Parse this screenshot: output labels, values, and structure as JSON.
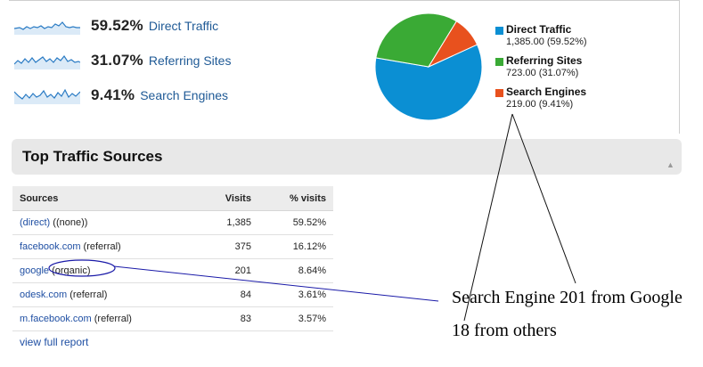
{
  "summary": [
    {
      "percent": "59.52%",
      "label": "Direct Traffic"
    },
    {
      "percent": "31.07%",
      "label": "Referring Sites"
    },
    {
      "percent": "9.41%",
      "label": "Search Engines"
    }
  ],
  "legend": [
    {
      "name": "Direct Traffic",
      "value": "1,385.00 (59.52%)",
      "color": "#0b8fd3"
    },
    {
      "name": "Referring Sites",
      "value": "723.00 (31.07%)",
      "color": "#3aaa35"
    },
    {
      "name": "Search Engines",
      "value": "219.00 (9.41%)",
      "color": "#e8511e"
    }
  ],
  "section": {
    "title": "Top Traffic Sources"
  },
  "table": {
    "headers": {
      "sources": "Sources",
      "visits": "Visits",
      "pct": "% visits"
    },
    "rows": [
      {
        "source": "(direct)",
        "medium": "((none))",
        "visits": "1,385",
        "pct": "59.52%"
      },
      {
        "source": "facebook.com",
        "medium": "(referral)",
        "visits": "375",
        "pct": "16.12%"
      },
      {
        "source": "google",
        "medium": "(organic)",
        "visits": "201",
        "pct": "8.64%"
      },
      {
        "source": "odesk.com",
        "medium": "(referral)",
        "visits": "84",
        "pct": "3.61%"
      },
      {
        "source": "m.facebook.com",
        "medium": "(referral)",
        "visits": "83",
        "pct": "3.57%"
      }
    ],
    "view_full": "view full report"
  },
  "annotations": {
    "line1": "Search Engine 201 from Google",
    "line2": "18 from others"
  },
  "chart_data": {
    "type": "pie",
    "categories": [
      "Direct Traffic",
      "Referring Sites",
      "Search Engines"
    ],
    "values": [
      1385,
      723,
      219
    ],
    "colors": [
      "#0b8fd3",
      "#3aaa35",
      "#e8511e"
    ]
  }
}
